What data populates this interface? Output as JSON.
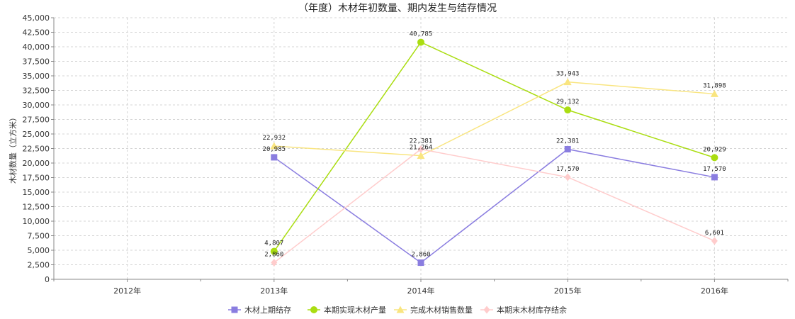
{
  "chart_data": {
    "type": "line",
    "title": "（年度）木材年初数量、期内发生与结存情况",
    "xlabel": "",
    "ylabel": "木材数量（立方米）",
    "categories": [
      "2012年",
      "2013年",
      "2014年",
      "2015年",
      "2016年"
    ],
    "ylim": [
      0,
      45000
    ],
    "yticks": [
      0,
      2500,
      5000,
      7500,
      10000,
      12500,
      15000,
      17500,
      20000,
      22500,
      25000,
      27500,
      30000,
      32500,
      35000,
      37500,
      40000,
      42500,
      45000
    ],
    "ytick_labels": [
      "0",
      "2,500",
      "5,000",
      "7,500",
      "10,000",
      "12,500",
      "15,000",
      "17,500",
      "20,000",
      "22,500",
      "25,000",
      "27,500",
      "30,000",
      "32,500",
      "35,000",
      "37,500",
      "40,000",
      "42,500",
      "45,000"
    ],
    "grid": true,
    "legend_position": "bottom",
    "series": [
      {
        "name": "木材上期结存",
        "color": "#8a7de0",
        "marker": "square",
        "values": [
          null,
          20985,
          2860,
          22381,
          17570
        ],
        "labels": [
          null,
          "20,985",
          "2,860",
          "22,381",
          "17,570"
        ]
      },
      {
        "name": "本期实现木材产量",
        "color": "#aadd11",
        "marker": "circle",
        "values": [
          null,
          4807,
          40785,
          29132,
          20929
        ],
        "labels": [
          null,
          "4,807",
          "40,785",
          "29,132",
          "20,929"
        ]
      },
      {
        "name": "完成木材销售数量",
        "color": "#f9e580",
        "marker": "triangle",
        "values": [
          null,
          22932,
          21264,
          33943,
          31898
        ],
        "labels": [
          null,
          "22,932",
          "21,264",
          "33,943",
          "31,898"
        ]
      },
      {
        "name": "本期末木材库存结余",
        "color": "#ffcccc",
        "marker": "diamond",
        "values": [
          null,
          2860,
          22381,
          17570,
          6601
        ],
        "labels": [
          null,
          "2,860",
          "22,381",
          "17,570",
          "6,601"
        ]
      }
    ]
  }
}
